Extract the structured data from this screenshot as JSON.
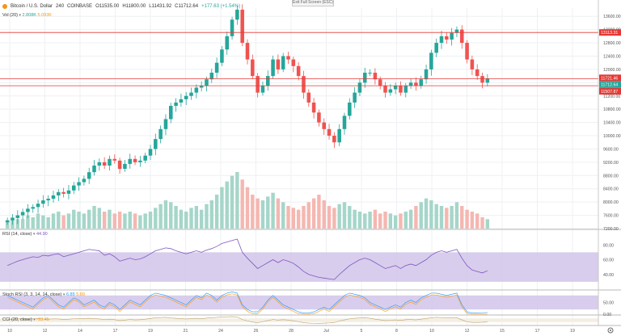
{
  "header": {
    "symbol": "Bitcoin / U.S. Dollar",
    "interval": "240",
    "exchange": "COINBASE",
    "ohlc": {
      "open": "O11535.00",
      "high": "H11800.00",
      "low": "L11431.92",
      "close": "C11712.64",
      "change": "+177.63 (+1.54%)"
    }
  },
  "volume": {
    "label": "Vol (20)",
    "value_up": "2.808K",
    "value_ma": "5.093K"
  },
  "exit_fullscreen": "Exit Full Screen (ESC)",
  "price_axis": {
    "ticks": [
      "13600.00",
      "13200.00",
      "12800.00",
      "12400.00",
      "12000.00",
      "11600.00",
      "11200.00",
      "10800.00",
      "10400.00",
      "10000.00",
      "9600.00",
      "9200.00",
      "8800.00",
      "8400.00",
      "8000.00",
      "7600.00",
      "7200.00"
    ],
    "tags": [
      {
        "value": "13113.31",
        "color": "#e53935"
      },
      {
        "value": "11721.46",
        "color": "#e53935"
      },
      {
        "value": "11712.64",
        "color": "#26a69a"
      },
      {
        "value": "01:48:41",
        "color": "#26a69a"
      },
      {
        "value": "11507.87",
        "color": "#e53935"
      }
    ]
  },
  "rsi": {
    "label": "RSI (14, close)",
    "value": "44.90",
    "ticks": [
      "80.00",
      "60.00",
      "40.00"
    ]
  },
  "stoch": {
    "label": "Stoch RSI (3, 3, 14, 14, close)",
    "k": "6.85",
    "d": "5.89",
    "ticks": [
      "50.00",
      "0.00"
    ]
  },
  "cci": {
    "label": "CCI (20, close)",
    "value": "-93.45"
  },
  "time_axis": {
    "labels": [
      "10",
      "12",
      "14",
      "17",
      "19",
      "21",
      "24",
      "26",
      "28",
      "Jul",
      "5",
      "8",
      "10",
      "12",
      "15",
      "17",
      "19"
    ]
  },
  "colors": {
    "up": "#26a69a",
    "down": "#ef5350",
    "hline": "#e53935",
    "rsi_band": "#d1c4e9",
    "rsi_line": "#7e57c2"
  },
  "chart_data": {
    "type": "candlestick",
    "series": [
      {
        "name": "Bitcoin / U.S. Dollar",
        "values": [
          7450,
          7520,
          7600,
          7700,
          7800,
          7850,
          7950,
          8050,
          8100,
          8200,
          8300,
          8250,
          8350,
          8500,
          8600,
          8700,
          8900,
          9100,
          9200,
          9100,
          9300,
          9250,
          9000,
          9150,
          9300,
          9200,
          9250,
          9400,
          9600,
          9900,
          10200,
          10500,
          10900,
          11000,
          11100,
          11200,
          11300,
          11450,
          11500,
          11700,
          11900,
          12200,
          12600,
          13000,
          13500,
          13800,
          12800,
          12300,
          11800,
          11300,
          11500,
          11800,
          12300,
          12000,
          12400,
          12300,
          12100,
          11800,
          11300,
          11000,
          10700,
          10400,
          10200,
          10000,
          9800,
          10200,
          10600,
          11000,
          11300,
          11600,
          11900,
          11900,
          11700,
          11500,
          11300,
          11400,
          11500,
          11300,
          11500,
          11600,
          11500,
          11700,
          12000,
          12500,
          12800,
          13000,
          12900,
          13100,
          13200,
          12800,
          12300,
          12000,
          11800,
          11600,
          11720
        ]
      }
    ],
    "ylim": [
      7200,
      13800
    ],
    "volume": [
      4,
      6,
      5,
      5,
      7,
      6,
      8,
      7,
      6,
      8,
      9,
      7,
      8,
      10,
      9,
      8,
      10,
      12,
      11,
      9,
      10,
      8,
      9,
      8,
      9,
      8,
      7,
      8,
      9,
      11,
      13,
      15,
      14,
      12,
      10,
      9,
      11,
      12,
      10,
      13,
      15,
      18,
      22,
      25,
      28,
      30,
      26,
      22,
      18,
      16,
      15,
      17,
      19,
      16,
      14,
      12,
      11,
      10,
      12,
      14,
      16,
      18,
      15,
      12,
      11,
      13,
      14,
      12,
      10,
      9,
      8,
      9,
      10,
      8,
      9,
      8,
      7,
      8,
      9,
      10,
      12,
      14,
      16,
      15,
      13,
      12,
      11,
      12,
      14,
      12,
      10,
      9,
      8,
      6,
      5
    ],
    "rsi": [
      52,
      55,
      58,
      60,
      62,
      64,
      63,
      66,
      65,
      67,
      68,
      64,
      66,
      68,
      70,
      72,
      74,
      73,
      72,
      66,
      68,
      64,
      58,
      60,
      62,
      60,
      61,
      64,
      68,
      72,
      74,
      76,
      75,
      72,
      70,
      68,
      70,
      72,
      70,
      73,
      75,
      78,
      82,
      84,
      86,
      88,
      70,
      62,
      55,
      48,
      52,
      56,
      60,
      56,
      60,
      58,
      55,
      50,
      44,
      40,
      38,
      36,
      35,
      34,
      33,
      40,
      46,
      52,
      56,
      60,
      62,
      60,
      56,
      52,
      48,
      50,
      52,
      48,
      52,
      54,
      52,
      56,
      60,
      66,
      70,
      72,
      70,
      72,
      74,
      62,
      52,
      46,
      44,
      42,
      45
    ],
    "stoch": [
      80,
      70,
      60,
      50,
      40,
      30,
      50,
      70,
      80,
      60,
      40,
      30,
      50,
      70,
      60,
      40,
      50,
      60,
      40,
      30,
      50,
      40,
      20,
      40,
      60,
      50,
      40,
      60,
      80,
      90,
      85,
      80,
      70,
      60,
      50,
      40,
      60,
      80,
      70,
      90,
      80,
      60,
      80,
      90,
      95,
      90,
      40,
      20,
      10,
      10,
      30,
      60,
      80,
      60,
      40,
      30,
      20,
      10,
      5,
      5,
      10,
      20,
      30,
      20,
      40,
      60,
      80,
      90,
      85,
      80,
      70,
      50,
      40,
      30,
      20,
      30,
      40,
      30,
      50,
      60,
      50,
      70,
      80,
      90,
      90,
      85,
      80,
      85,
      90,
      40,
      10,
      5,
      5,
      6,
      7
    ],
    "cci": [
      40,
      60,
      80,
      70,
      60,
      80,
      90,
      70,
      60,
      80,
      70,
      50,
      60,
      80,
      90,
      100,
      110,
      90,
      70,
      40,
      60,
      30,
      -20,
      10,
      40,
      20,
      30,
      60,
      100,
      140,
      150,
      160,
      130,
      110,
      90,
      70,
      90,
      110,
      90,
      120,
      140,
      160,
      180,
      190,
      200,
      180,
      40,
      -40,
      -100,
      -140,
      -80,
      -20,
      40,
      10,
      30,
      10,
      -30,
      -80,
      -140,
      -160,
      -170,
      -180,
      -160,
      -150,
      -130,
      -40,
      20,
      80,
      110,
      130,
      140,
      110,
      60,
      20,
      -20,
      0,
      20,
      -10,
      30,
      40,
      20,
      60,
      100,
      140,
      160,
      150,
      130,
      140,
      150,
      20,
      -80,
      -120,
      -120,
      -110,
      -93
    ]
  }
}
